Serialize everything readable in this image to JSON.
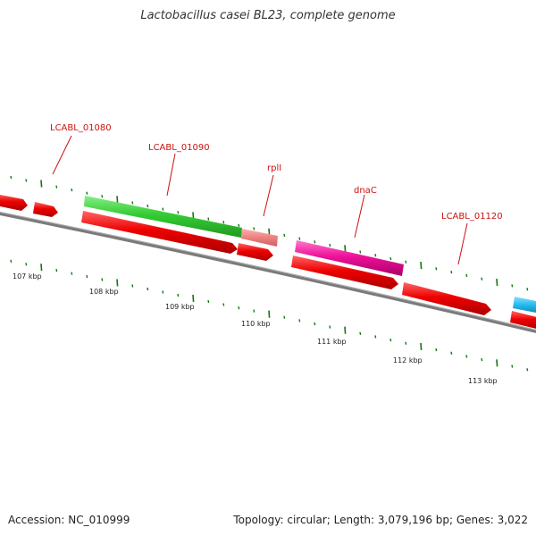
{
  "title": "Lactobacillus casei BL23, complete genome",
  "footer": {
    "accession": "Accession: NC_010999",
    "summary": "Topology: circular; Length: 3,079,196 bp; Genes: 3,022"
  },
  "gene_labels": [
    "LCABL_01080",
    "LCABL_01090",
    "rplI",
    "dnaC",
    "LCABL_01120"
  ],
  "kbp_labels": [
    "107 kbp",
    "108 kbp",
    "109 kbp",
    "110 kbp",
    "111 kbp",
    "112 kbp",
    "113 kbp"
  ],
  "colors": {
    "backbone": "#808080",
    "red_gene": "#ee0000",
    "green_gene": "#33cc33",
    "salmon_gene": "#ee8080",
    "magenta_gene": "#ee1199",
    "cyan_gene": "#22bbee",
    "tick": "#117711",
    "label": "#cc1111"
  }
}
